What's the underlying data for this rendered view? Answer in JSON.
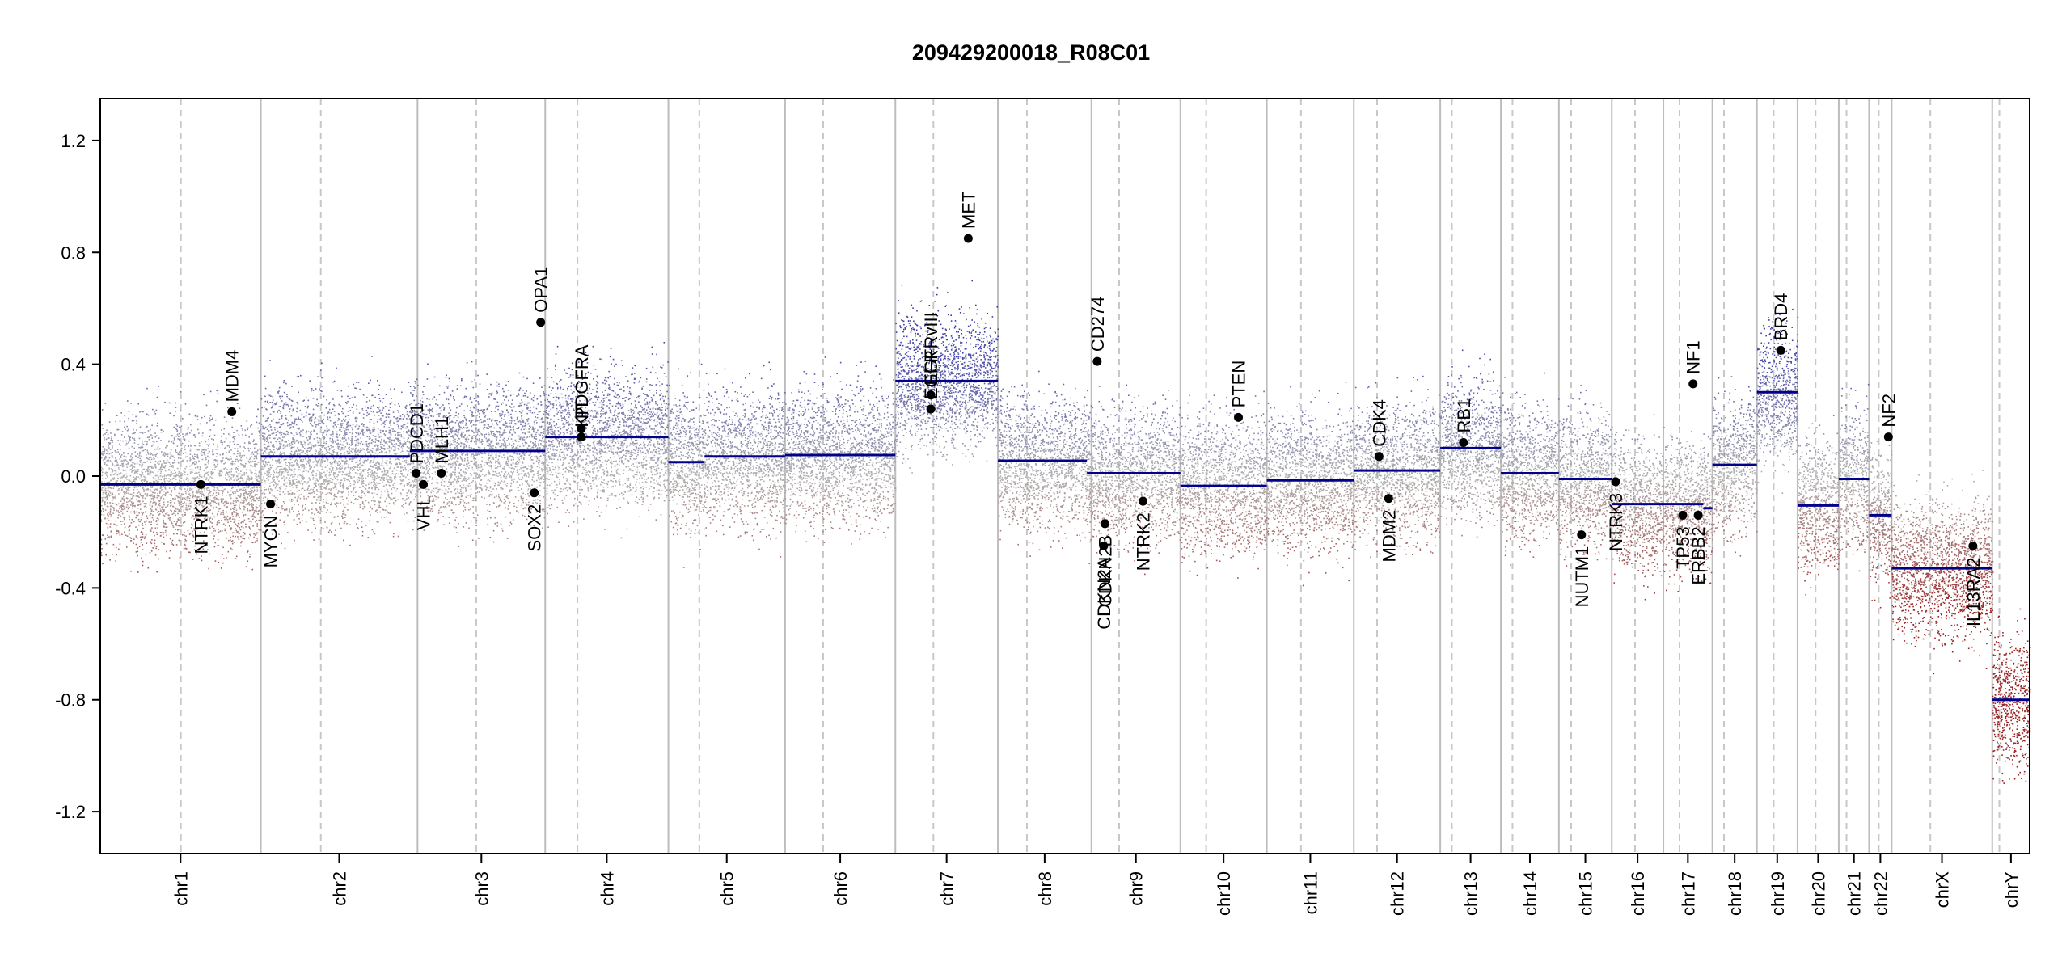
{
  "chart_data": {
    "type": "scatter",
    "title": "209429200018_R08C01",
    "xlabel": "",
    "ylabel": "",
    "ylim": [
      -1.35,
      1.35
    ],
    "y_ticks": [
      -1.2,
      -0.8,
      -0.4,
      0.0,
      0.4,
      0.8,
      1.2
    ],
    "y_tick_labels": [
      "-1.2",
      "-0.8",
      "-0.4",
      "0.0",
      "0.4",
      "0.8",
      "1.2"
    ],
    "grid": false,
    "colors": {
      "gain": "#3a3aa8",
      "loss": "#9a2222",
      "neutral": "#b0b0b0",
      "segment": "#00008b",
      "chrom_boundary": "#bdbdbd",
      "centromere": "#c8c8c8",
      "gene_point": "#000000"
    },
    "chromosomes": [
      {
        "name": "chr1",
        "start": 0,
        "end": 249,
        "centromere": 125
      },
      {
        "name": "chr2",
        "start": 249,
        "end": 492,
        "centromere": 342
      },
      {
        "name": "chr3",
        "start": 492,
        "end": 690,
        "centromere": 583
      },
      {
        "name": "chr4",
        "start": 690,
        "end": 881,
        "centromere": 740
      },
      {
        "name": "chr5",
        "start": 881,
        "end": 1062,
        "centromere": 929
      },
      {
        "name": "chr6",
        "start": 1062,
        "end": 1233,
        "centromere": 1121
      },
      {
        "name": "chr7",
        "start": 1233,
        "end": 1392,
        "centromere": 1292
      },
      {
        "name": "chr8",
        "start": 1392,
        "end": 1537,
        "centromere": 1437
      },
      {
        "name": "chr9",
        "start": 1537,
        "end": 1675,
        "centromere": 1580
      },
      {
        "name": "chr10",
        "start": 1675,
        "end": 1809,
        "centromere": 1715
      },
      {
        "name": "chr11",
        "start": 1809,
        "end": 1944,
        "centromere": 1862
      },
      {
        "name": "chr12",
        "start": 1944,
        "end": 2078,
        "centromere": 1980
      },
      {
        "name": "chr13",
        "start": 2078,
        "end": 2172,
        "centromere": 2096
      },
      {
        "name": "chr14",
        "start": 2172,
        "end": 2262,
        "centromere": 2190
      },
      {
        "name": "chr15",
        "start": 2262,
        "end": 2344,
        "centromere": 2281
      },
      {
        "name": "chr16",
        "start": 2344,
        "end": 2424,
        "centromere": 2380
      },
      {
        "name": "chr17",
        "start": 2424,
        "end": 2500,
        "centromere": 2449
      },
      {
        "name": "chr18",
        "start": 2500,
        "end": 2569,
        "centromere": 2518
      },
      {
        "name": "chr19",
        "start": 2569,
        "end": 2632,
        "centromere": 2595
      },
      {
        "name": "chr20",
        "start": 2632,
        "end": 2696,
        "centromere": 2660
      },
      {
        "name": "chr21",
        "start": 2696,
        "end": 2743,
        "centromere": 2708
      },
      {
        "name": "chr22",
        "start": 2743,
        "end": 2778,
        "centromere": 2758
      },
      {
        "name": "chrX",
        "start": 2778,
        "end": 2934,
        "centromere": 2838
      },
      {
        "name": "chrY",
        "start": 2934,
        "end": 2992,
        "centromere": 2945
      }
    ],
    "segments": [
      {
        "start": 0,
        "end": 249,
        "value": -0.03
      },
      {
        "start": 249,
        "end": 480,
        "value": 0.07
      },
      {
        "start": 480,
        "end": 690,
        "value": 0.09
      },
      {
        "start": 690,
        "end": 881,
        "value": 0.14
      },
      {
        "start": 881,
        "end": 937,
        "value": 0.05
      },
      {
        "start": 937,
        "end": 1062,
        "value": 0.07
      },
      {
        "start": 1062,
        "end": 1233,
        "value": 0.075
      },
      {
        "start": 1233,
        "end": 1392,
        "value": 0.34
      },
      {
        "start": 1392,
        "end": 1530,
        "value": 0.055
      },
      {
        "start": 1530,
        "end": 1675,
        "value": 0.01
      },
      {
        "start": 1675,
        "end": 1809,
        "value": -0.035
      },
      {
        "start": 1809,
        "end": 1944,
        "value": -0.015
      },
      {
        "start": 1944,
        "end": 2078,
        "value": 0.02
      },
      {
        "start": 2078,
        "end": 2172,
        "value": 0.1
      },
      {
        "start": 2172,
        "end": 2262,
        "value": 0.01
      },
      {
        "start": 2262,
        "end": 2344,
        "value": -0.01
      },
      {
        "start": 2344,
        "end": 2486,
        "value": -0.1
      },
      {
        "start": 2486,
        "end": 2500,
        "value": -0.115
      },
      {
        "start": 2500,
        "end": 2569,
        "value": 0.04
      },
      {
        "start": 2569,
        "end": 2632,
        "value": 0.3
      },
      {
        "start": 2632,
        "end": 2696,
        "value": -0.105
      },
      {
        "start": 2696,
        "end": 2743,
        "value": -0.01
      },
      {
        "start": 2743,
        "end": 2778,
        "value": -0.14
      },
      {
        "start": 2778,
        "end": 2934,
        "value": -0.33
      },
      {
        "start": 2934,
        "end": 2992,
        "value": -0.8
      }
    ],
    "genes": [
      {
        "name": "NTRK1",
        "x": 156,
        "value": -0.03,
        "side": "below"
      },
      {
        "name": "MDM4",
        "x": 204,
        "value": 0.23,
        "side": "above"
      },
      {
        "name": "MYCN",
        "x": 264,
        "value": -0.1,
        "side": "below"
      },
      {
        "name": "PDCD1",
        "x": 490,
        "value": 0.01,
        "side": "above"
      },
      {
        "name": "VHL",
        "x": 501,
        "value": -0.03,
        "side": "below"
      },
      {
        "name": "MLH1",
        "x": 529,
        "value": 0.01,
        "side": "above"
      },
      {
        "name": "SOX2",
        "x": 673,
        "value": -0.06,
        "side": "below"
      },
      {
        "name": "OPA1",
        "x": 683,
        "value": 0.55,
        "side": "above"
      },
      {
        "name": "PDGFRA",
        "x": 746,
        "value": 0.17,
        "side": "above"
      },
      {
        "name": "KIT",
        "x": 746,
        "value": 0.14,
        "side": "above"
      },
      {
        "name": "EGFRvIII",
        "x": 1288,
        "value": 0.29,
        "side": "above"
      },
      {
        "name": "EGFR",
        "x": 1288,
        "value": 0.24,
        "side": "above"
      },
      {
        "name": "MET",
        "x": 1346,
        "value": 0.85,
        "side": "above"
      },
      {
        "name": "CD274",
        "x": 1546,
        "value": 0.41,
        "side": "above"
      },
      {
        "name": "CDKN2A",
        "x": 1556,
        "value": -0.25,
        "side": "below"
      },
      {
        "name": "CDKN2B",
        "x": 1558,
        "value": -0.17,
        "side": "below"
      },
      {
        "name": "NTRK2",
        "x": 1617,
        "value": -0.09,
        "side": "below"
      },
      {
        "name": "PTEN",
        "x": 1765,
        "value": 0.21,
        "side": "above"
      },
      {
        "name": "CDK4",
        "x": 1983,
        "value": 0.07,
        "side": "above"
      },
      {
        "name": "MDM2",
        "x": 1998,
        "value": -0.08,
        "side": "below"
      },
      {
        "name": "RB1",
        "x": 2114,
        "value": 0.12,
        "side": "above"
      },
      {
        "name": "NUTM1",
        "x": 2297,
        "value": -0.21,
        "side": "below"
      },
      {
        "name": "NTRK3",
        "x": 2350,
        "value": -0.02,
        "side": "below"
      },
      {
        "name": "TP53",
        "x": 2454,
        "value": -0.14,
        "side": "below"
      },
      {
        "name": "NF1",
        "x": 2470,
        "value": 0.33,
        "side": "above"
      },
      {
        "name": "ERBB2",
        "x": 2478,
        "value": -0.14,
        "side": "below"
      },
      {
        "name": "BRD4",
        "x": 2606,
        "value": 0.45,
        "side": "above"
      },
      {
        "name": "NF2",
        "x": 2773,
        "value": 0.14,
        "side": "above"
      },
      {
        "name": "IL13RA2",
        "x": 2904,
        "value": -0.25,
        "side": "below"
      }
    ]
  }
}
